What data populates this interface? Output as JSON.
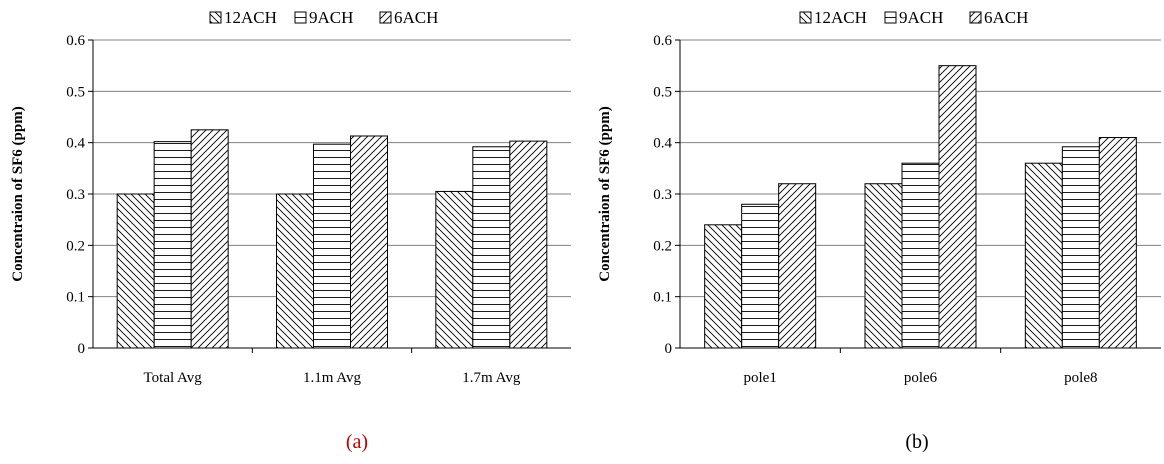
{
  "charts": [
    {
      "caption": "(a)",
      "caption_color": "#c00000"
    },
    {
      "caption": "(b)",
      "caption_color": "#000000"
    }
  ],
  "chart_data": [
    {
      "type": "bar",
      "categories": [
        "Total Avg",
        "1.1m Avg",
        "1.7m Avg"
      ],
      "series": [
        {
          "name": "12ACH",
          "pattern": "back-diagonal",
          "values": [
            0.3,
            0.3,
            0.305
          ]
        },
        {
          "name": "9ACH",
          "pattern": "horizontal",
          "values": [
            0.402,
            0.397,
            0.392
          ]
        },
        {
          "name": "6ACH",
          "pattern": "forward-diagonal",
          "values": [
            0.425,
            0.413,
            0.403
          ]
        }
      ],
      "ylabel": "Concentraion of SF6 (ppm)",
      "xlabel": "",
      "ylim": [
        0,
        0.6
      ],
      "yticks": [
        "0",
        "0.1",
        "0.2",
        "0.3",
        "0.4",
        "0.5",
        "0.6"
      ],
      "grid": true,
      "legend": "top"
    },
    {
      "type": "bar",
      "categories": [
        "pole1",
        "pole6",
        "pole8"
      ],
      "series": [
        {
          "name": "12ACH",
          "pattern": "back-diagonal",
          "values": [
            0.24,
            0.32,
            0.36
          ]
        },
        {
          "name": "9ACH",
          "pattern": "horizontal",
          "values": [
            0.28,
            0.36,
            0.392
          ]
        },
        {
          "name": "6ACH",
          "pattern": "forward-diagonal",
          "values": [
            0.32,
            0.55,
            0.41
          ]
        }
      ],
      "ylabel": "Concentraion of SF6 (ppm)",
      "xlabel": "",
      "ylim": [
        0,
        0.6
      ],
      "yticks": [
        "0",
        "0.1",
        "0.2",
        "0.3",
        "0.4",
        "0.5",
        "0.6"
      ],
      "grid": true,
      "legend": "top"
    }
  ]
}
